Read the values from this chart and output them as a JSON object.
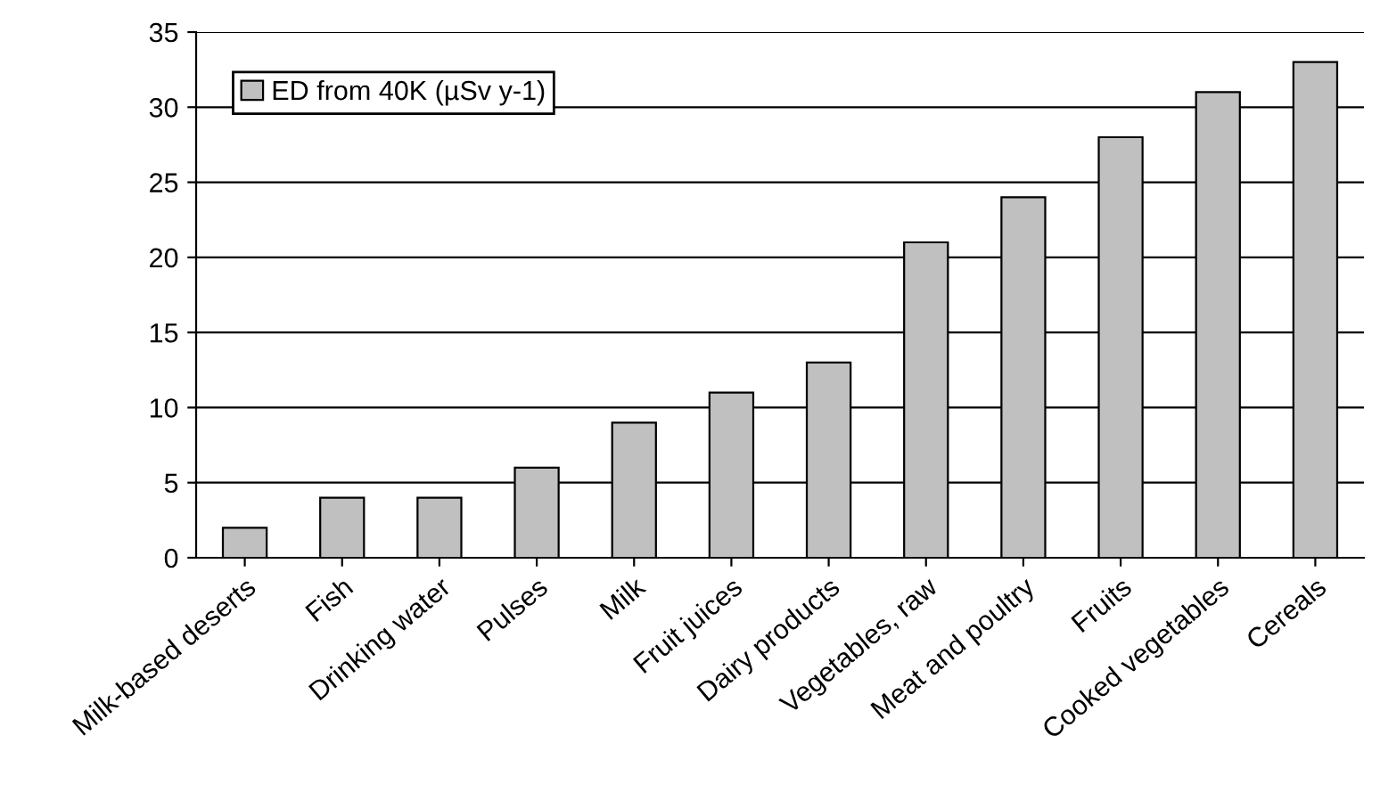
{
  "chart_data": {
    "type": "bar",
    "categories": [
      "Milk-based deserts",
      "Fish",
      "Drinking water",
      "Pulses",
      "Milk",
      "Fruit juices",
      "Dairy products",
      "Vegetables, raw",
      "Meat and poultry",
      "Fruits",
      "Cooked vegetables",
      "Cereals"
    ],
    "series": [
      {
        "name": "ED from 40K (µSv y-1)",
        "color": "#c0c0c0",
        "values": [
          2,
          4,
          4,
          6,
          9,
          11,
          13,
          21,
          24,
          28,
          31,
          33
        ]
      }
    ],
    "ylim": [
      0,
      35
    ],
    "yticks": [
      0,
      5,
      10,
      15,
      20,
      25,
      30,
      35
    ],
    "grid": "y",
    "legend": "top left"
  }
}
